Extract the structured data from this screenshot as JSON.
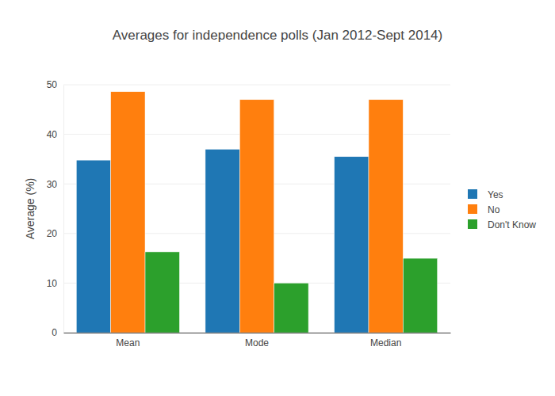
{
  "chart_data": {
    "type": "bar",
    "title": "Averages for independence polls (Jan 2012-Sept 2014)",
    "y_label": "Average (%)",
    "categories": [
      "Mean",
      "Mode",
      "Median"
    ],
    "series": [
      {
        "name": "Yes",
        "color": "#1f77b4",
        "values": [
          34.8,
          37,
          35.5
        ]
      },
      {
        "name": "No",
        "color": "#ff7f0e",
        "values": [
          48.6,
          47,
          47
        ]
      },
      {
        "name": "Don't Know",
        "color": "#2ca02c",
        "values": [
          16.3,
          10,
          15
        ]
      }
    ],
    "ylim": [
      0,
      50
    ],
    "yticks": [
      0,
      10,
      20,
      30,
      40,
      50
    ],
    "grid": true,
    "legend": "right"
  }
}
